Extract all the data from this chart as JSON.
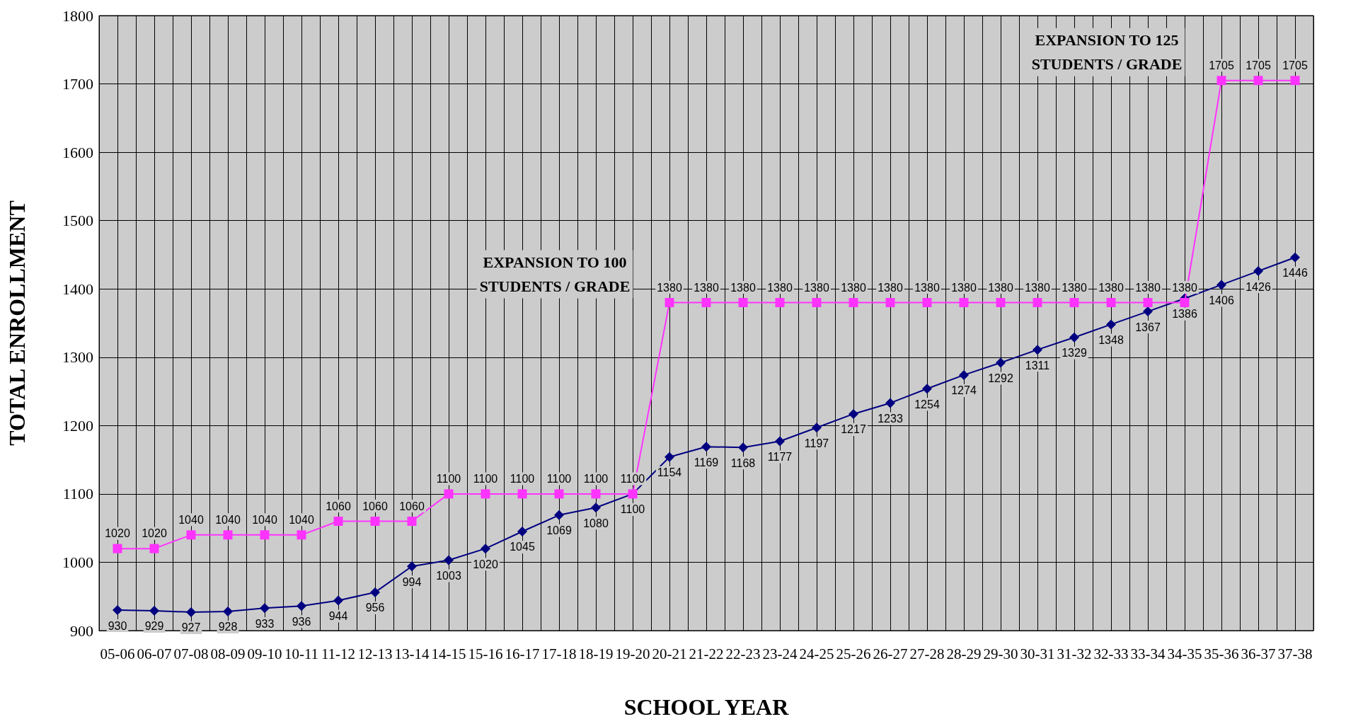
{
  "chart_data": {
    "type": "line",
    "xlabel": "SCHOOL YEAR",
    "ylabel": "TOTAL ENROLLMENT",
    "categories": [
      "05-06",
      "06-07",
      "07-08",
      "08-09",
      "09-10",
      "10-11",
      "11-12",
      "12-13",
      "13-14",
      "14-15",
      "15-16",
      "16-17",
      "17-18",
      "18-19",
      "19-20",
      "20-21",
      "21-22",
      "22-23",
      "23-24",
      "24-25",
      "25-26",
      "26-27",
      "27-28",
      "28-29",
      "29-30",
      "30-31",
      "31-32",
      "32-33",
      "33-34",
      "34-35",
      "35-36",
      "36-37",
      "37-38"
    ],
    "series": [
      {
        "color": "#000080",
        "marker": "diamond",
        "values": [
          930,
          929,
          927,
          928,
          933,
          936,
          944,
          956,
          994,
          1003,
          1020,
          1045,
          1069,
          1080,
          1100,
          1154,
          1169,
          1168,
          1177,
          1197,
          1217,
          1233,
          1254,
          1274,
          1292,
          1311,
          1329,
          1348,
          1367,
          1386,
          1406,
          1426,
          1446
        ]
      },
      {
        "color": "#ff33ff",
        "marker": "square",
        "values": [
          1020,
          1020,
          1040,
          1040,
          1040,
          1040,
          1060,
          1060,
          1060,
          1100,
          1100,
          1100,
          1100,
          1100,
          1100,
          1380,
          1380,
          1380,
          1380,
          1380,
          1380,
          1380,
          1380,
          1380,
          1380,
          1380,
          1380,
          1380,
          1380,
          1380,
          1705,
          1705,
          1705
        ]
      }
    ],
    "ylim": [
      900,
      1800
    ],
    "yticks": [
      900,
      1000,
      1100,
      1200,
      1300,
      1400,
      1500,
      1600,
      1700,
      1800
    ],
    "grid": true,
    "data_labels": true,
    "line_style": "solid",
    "annotations": [
      {
        "text": "EXPANSION TO 100\nSTUDENTS / GRADE",
        "x": "20-21",
        "y": 1380
      },
      {
        "text": "EXPANSION TO 125\nSTUDENTS / GRADE",
        "x": "35-36",
        "y": 1705
      }
    ]
  }
}
